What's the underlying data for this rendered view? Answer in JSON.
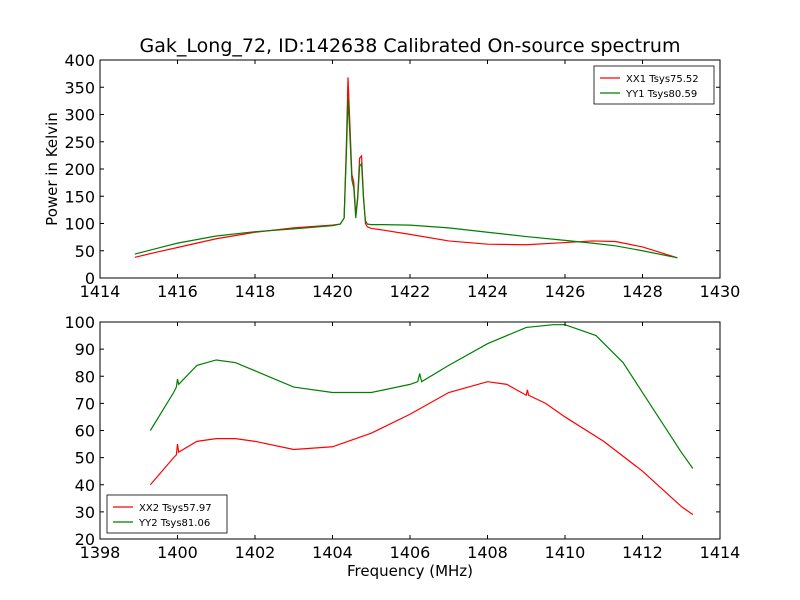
{
  "figure_title": "Gak_Long_72, ID:142638 Calibrated On-source spectrum",
  "chart_data": [
    {
      "type": "line",
      "title": "Gak_Long_72, ID:142638 Calibrated On-source spectrum",
      "xlabel": "",
      "ylabel": "Power in Kelvin",
      "xlim": [
        1414,
        1430
      ],
      "ylim": [
        0,
        400
      ],
      "xticks": [
        1414,
        1416,
        1418,
        1420,
        1422,
        1424,
        1426,
        1428,
        1430
      ],
      "yticks": [
        0,
        50,
        100,
        150,
        200,
        250,
        300,
        350,
        400
      ],
      "legend_position": "top-right",
      "series": [
        {
          "name": "XX1 Tsys75.52",
          "color": "#ff0000",
          "x": [
            1414.9,
            1415.5,
            1416,
            1417,
            1418,
            1419,
            1420,
            1420.2,
            1420.3,
            1420.36,
            1420.4,
            1420.45,
            1420.5,
            1420.55,
            1420.6,
            1420.65,
            1420.7,
            1420.75,
            1420.8,
            1420.85,
            1420.9,
            1421,
            1421.3,
            1422,
            1423,
            1424,
            1425,
            1426,
            1426.7,
            1427.3,
            1428,
            1428.9
          ],
          "y": [
            38,
            48,
            56,
            72,
            84,
            92,
            97,
            99,
            110,
            250,
            368,
            280,
            190,
            175,
            115,
            150,
            220,
            224,
            150,
            100,
            94,
            91,
            88,
            80,
            68,
            62,
            61,
            65,
            68,
            67,
            57,
            37
          ]
        },
        {
          "name": "YY1 Tsys80.59",
          "color": "#007f00",
          "x": [
            1414.9,
            1415.5,
            1416,
            1417,
            1418,
            1419,
            1420,
            1420.2,
            1420.3,
            1420.36,
            1420.4,
            1420.45,
            1420.5,
            1420.55,
            1420.6,
            1420.65,
            1420.7,
            1420.75,
            1420.8,
            1420.85,
            1420.9,
            1421,
            1421.3,
            1422,
            1423,
            1424,
            1425,
            1426,
            1426.7,
            1427.3,
            1428,
            1428.9
          ],
          "y": [
            44,
            55,
            64,
            77,
            85,
            90,
            96,
            99,
            110,
            230,
            330,
            260,
            180,
            165,
            110,
            145,
            205,
            210,
            145,
            105,
            99,
            98,
            98,
            97,
            92,
            84,
            76,
            69,
            64,
            59,
            50,
            37
          ]
        }
      ]
    },
    {
      "type": "line",
      "title": "",
      "xlabel": "Frequency (MHz)",
      "ylabel": "",
      "xlim": [
        1398,
        1414
      ],
      "ylim": [
        20,
        100
      ],
      "xticks": [
        1398,
        1400,
        1402,
        1404,
        1406,
        1408,
        1410,
        1412,
        1414
      ],
      "yticks": [
        20,
        30,
        40,
        50,
        60,
        70,
        80,
        90,
        100
      ],
      "legend_position": "bottom-left",
      "series": [
        {
          "name": "XX2 Tsys57.97",
          "color": "#ff0000",
          "x": [
            1399.3,
            1399.9,
            1399.97,
            1400.0,
            1400.03,
            1400.5,
            1401,
            1401.5,
            1402,
            1403,
            1404,
            1405,
            1406,
            1407,
            1408,
            1408.5,
            1409.0,
            1409.03,
            1409.06,
            1409.5,
            1410,
            1411,
            1412,
            1413,
            1413.3
          ],
          "y": [
            40,
            50,
            51,
            55,
            52,
            56,
            57,
            57,
            56,
            53,
            54,
            59,
            66,
            74,
            78,
            77,
            73,
            75,
            73,
            70,
            65,
            56,
            45,
            32,
            29
          ]
        },
        {
          "name": "YY2 Tsys81.06",
          "color": "#007f00",
          "x": [
            1399.3,
            1399.9,
            1399.97,
            1400.0,
            1400.03,
            1400.5,
            1401,
            1401.5,
            1402,
            1403,
            1404,
            1405,
            1406,
            1406.2,
            1406.25,
            1406.3,
            1407,
            1408,
            1409,
            1409.7,
            1410,
            1410.8,
            1411.5,
            1412,
            1413,
            1413.3
          ],
          "y": [
            60,
            74,
            76,
            79,
            77,
            84,
            86,
            85,
            82,
            76,
            74,
            74,
            77,
            78,
            81,
            78,
            84,
            92,
            98,
            99,
            99,
            95,
            85,
            74,
            52,
            46
          ]
        }
      ]
    }
  ]
}
